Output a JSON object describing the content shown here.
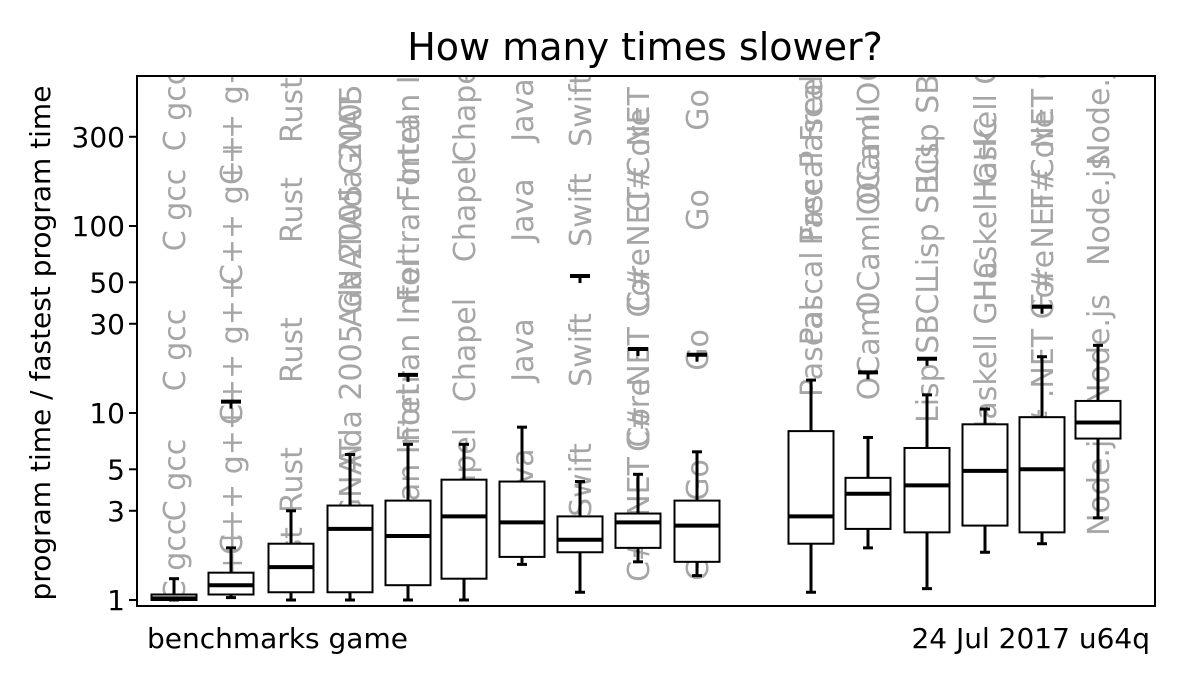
{
  "chart_data": {
    "type": "boxplot",
    "title": "How many times slower?",
    "xlabel": "",
    "ylabel": "program time / fastest program time",
    "yscale": "log",
    "ylim": [
      0.95,
      550
    ],
    "yticks": [
      1,
      3,
      5,
      10,
      30,
      50,
      100,
      300
    ],
    "ytick_labels": [
      "1",
      "3",
      "5",
      "10",
      "30",
      "50",
      "100",
      "300"
    ],
    "footer_left": "benchmarks game",
    "footer_right": "24 Jul 2017 u64q",
    "series": [
      {
        "name": "C gcc",
        "label_rows": [
          "C gcc",
          "C gcc",
          "C gcc",
          "C gcc",
          "C gcc"
        ],
        "whisker_low": 1.0,
        "q1": 1.0,
        "median": 1.02,
        "q3": 1.07,
        "whisker_high": 1.3,
        "outliers": []
      },
      {
        "name": "C++ g++",
        "label_rows": [
          "C++ g++",
          "C++ g++",
          "C++ g++",
          "C++ g++",
          "g++"
        ],
        "whisker_low": 1.03,
        "q1": 1.07,
        "median": 1.2,
        "q3": 1.4,
        "whisker_high": 1.9,
        "outliers": [
          11.5
        ]
      },
      {
        "name": "Rust",
        "label_rows": [
          "Rust",
          "Rust",
          "Rust",
          "Rust",
          "Rust"
        ],
        "whisker_low": 1.0,
        "q1": 1.1,
        "median": 1.5,
        "q3": 2.0,
        "whisker_high": 3.0,
        "outliers": []
      },
      {
        "name": "Ada 2005 GNAT",
        "label_rows": [
          "Ada 2005 GNAT",
          "Ada 2005 GNAT",
          "Ada 2005 GNAT",
          "GNAT"
        ],
        "whisker_low": 1.0,
        "q1": 1.1,
        "median": 2.4,
        "q3": 3.2,
        "whisker_high": 6.0,
        "outliers": []
      },
      {
        "name": "Fortran Intel",
        "label_rows": [
          "Fortran Intel",
          "Fortran Intel",
          "Fortran Intel",
          "Fortran Intel"
        ],
        "whisker_low": 1.0,
        "q1": 1.2,
        "median": 2.2,
        "q3": 3.4,
        "whisker_high": 6.8,
        "outliers": [
          16
        ]
      },
      {
        "name": "Chapel",
        "label_rows": [
          "Chapel",
          "Chapel",
          "Chapel",
          "Chapel"
        ],
        "whisker_low": 1.0,
        "q1": 1.3,
        "median": 2.8,
        "q3": 4.4,
        "whisker_high": 6.8,
        "outliers": []
      },
      {
        "name": "Java",
        "label_rows": [
          "Java",
          "Java",
          "Java",
          "Java"
        ],
        "whisker_low": 1.55,
        "q1": 1.7,
        "median": 2.6,
        "q3": 4.3,
        "whisker_high": 8.4,
        "outliers": []
      },
      {
        "name": "Swift",
        "label_rows": [
          "Swift",
          "Swift",
          "Swift",
          "Swift"
        ],
        "whisker_low": 1.1,
        "q1": 1.8,
        "median": 2.1,
        "q3": 2.8,
        "whisker_high": 4.3,
        "outliers": [
          54
        ]
      },
      {
        "name": "C# .NET Core",
        "label_rows": [
          "C# .NET Core",
          "C# .NET Core",
          "C# .NET Core",
          "C# .NET Core"
        ],
        "whisker_low": 1.6,
        "q1": 1.9,
        "median": 2.6,
        "q3": 2.9,
        "whisker_high": 4.7,
        "outliers": [
          22
        ]
      },
      {
        "name": "Go",
        "label_rows": [
          "Go",
          "Go",
          "Go",
          "Go",
          "Go"
        ],
        "whisker_low": 1.35,
        "q1": 1.6,
        "median": 2.5,
        "q3": 3.4,
        "whisker_high": 6.2,
        "outliers": [
          20.5
        ]
      },
      {
        "name": "Pascal Free Pascal",
        "label_rows": [
          "Pascal Free Pascal",
          "Pascal Free Pascal",
          "Pascal"
        ],
        "whisker_low": 1.1,
        "q1": 2.0,
        "median": 2.8,
        "q3": 8.0,
        "whisker_high": 15,
        "outliers": []
      },
      {
        "name": "OCaml OCaml",
        "label_rows": [
          "OCaml OCaml",
          "OCaml OCaml",
          "OCaml"
        ],
        "whisker_low": 1.9,
        "q1": 2.4,
        "median": 3.7,
        "q3": 4.5,
        "whisker_high": 7.4,
        "outliers": [
          16.5
        ]
      },
      {
        "name": "Lisp SBCL",
        "label_rows": [
          "Lisp SBCL",
          "Lisp SBCL",
          "Lisp SBCL"
        ],
        "whisker_low": 1.15,
        "q1": 2.3,
        "median": 4.1,
        "q3": 6.5,
        "whisker_high": 12.5,
        "outliers": [
          19.5
        ]
      },
      {
        "name": "Haskell GHC",
        "label_rows": [
          "Haskell GHC",
          "Haskell GHC",
          "Haskell GHC",
          "GHC"
        ],
        "whisker_low": 1.8,
        "q1": 2.5,
        "median": 4.9,
        "q3": 8.7,
        "whisker_high": 10.5,
        "outliers": []
      },
      {
        "name": "F# .NET Core",
        "label_rows": [
          "F# .NET Core",
          "F# .NET Core",
          "F# .NET Core",
          "F#"
        ],
        "whisker_low": 2.0,
        "q1": 2.3,
        "median": 5.0,
        "q3": 9.5,
        "whisker_high": 20,
        "outliers": [
          37
        ]
      },
      {
        "name": "Node.js",
        "label_rows": [
          "Node.js",
          "Node.js",
          "Node.js",
          "Node.js"
        ],
        "whisker_low": 2.75,
        "q1": 7.3,
        "median": 8.9,
        "q3": 11.6,
        "whisker_high": 23,
        "outliers": []
      }
    ]
  }
}
